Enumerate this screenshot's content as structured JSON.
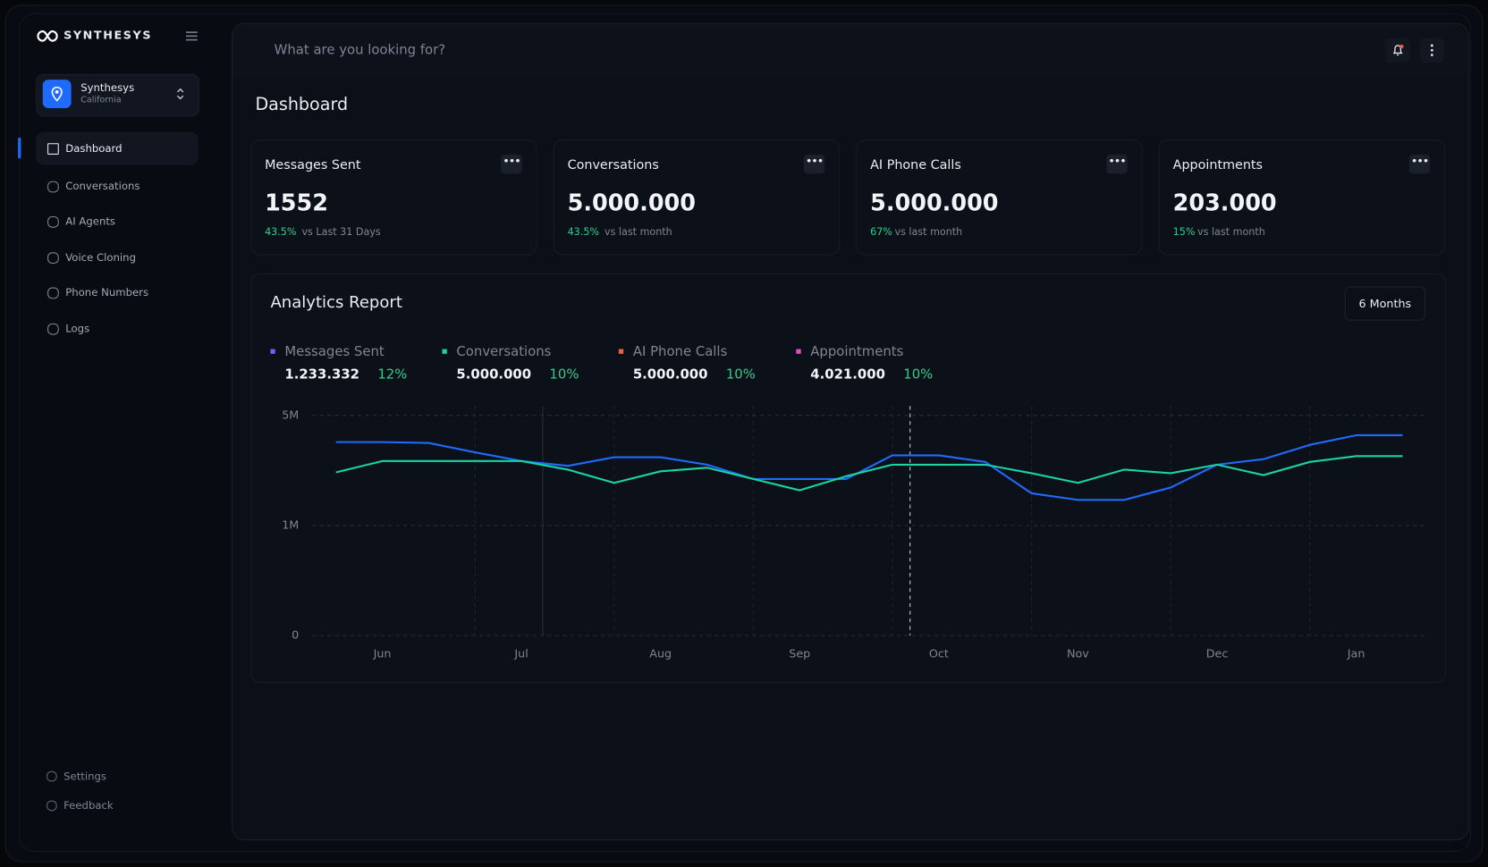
{
  "brand": "SYNTHESYS",
  "workspace": {
    "name": "Synthesys",
    "location": "California"
  },
  "nav": [
    "Dashboard",
    "Conversations",
    "AI Agents",
    "Voice Cloning",
    "Phone Numbers",
    "Logs"
  ],
  "footer_nav": [
    "Settings",
    "Feedback"
  ],
  "search_placeholder": "What are you looking for?",
  "page_title": "Dashboard",
  "cards": [
    {
      "title": "Messages Sent",
      "value": "1552",
      "change": "43.5%",
      "comparison": "vs Last 31 Days"
    },
    {
      "title": "Conversations",
      "value": "5.000.000",
      "change": "43.5%",
      "comparison": "vs last month"
    },
    {
      "title": "AI Phone Calls",
      "value": "5.000.000",
      "change": "67%",
      "comparison": "vs last month"
    },
    {
      "title": "Appointments",
      "value": "203.000",
      "change": "15%",
      "comparison": "vs last month"
    }
  ],
  "chart_data": {
    "type": "line",
    "title": "Analytics Report",
    "range_button": "6 Months",
    "legend": [
      {
        "name": "Messages Sent",
        "color": "#7b5cf0",
        "total": "1.233.332",
        "change": "12%"
      },
      {
        "name": "Conversations",
        "color": "#19d3a2",
        "total": "5.000.000",
        "change": "10%"
      },
      {
        "name": "AI Phone Calls",
        "color": "#f0603c",
        "total": "5.000.000",
        "change": "10%"
      },
      {
        "name": "Appointments",
        "color": "#e04fc0",
        "total": "4.021.000",
        "change": "10%"
      }
    ],
    "categories": [
      null,
      "Jun",
      null,
      null,
      "Jul",
      null,
      null,
      "Aug",
      null,
      null,
      "Sep",
      null,
      null,
      "Oct",
      null,
      null,
      "Nov",
      null,
      null,
      "Dec",
      null,
      null,
      "Jan",
      null
    ],
    "series": [
      {
        "color": "#1f6bff",
        "values": [
          4030000,
          4030000,
          4000000,
          3660000,
          3340000,
          3170000,
          3480000,
          3480000,
          3210000,
          2690000,
          2690000,
          2690000,
          3550000,
          3550000,
          3310000,
          2170000,
          1930000,
          1930000,
          2380000,
          3210000,
          3410000,
          3930000,
          4280000,
          4280000
        ]
      },
      {
        "color": "#19d3a2",
        "values": [
          2930000,
          3340000,
          3340000,
          3340000,
          3340000,
          3030000,
          2550000,
          2970000,
          3100000,
          2690000,
          2280000,
          2790000,
          3210000,
          3210000,
          3210000,
          2900000,
          2550000,
          3030000,
          2900000,
          3210000,
          2830000,
          3310000,
          3520000,
          3520000
        ]
      }
    ],
    "ylim": [
      0,
      5000000
    ],
    "yticks": [
      {
        "value": 0,
        "label": "0"
      },
      {
        "value": 1000000,
        "label": "1M"
      },
      {
        "value": 5000000,
        "label": "5M"
      }
    ],
    "grid": true
  }
}
